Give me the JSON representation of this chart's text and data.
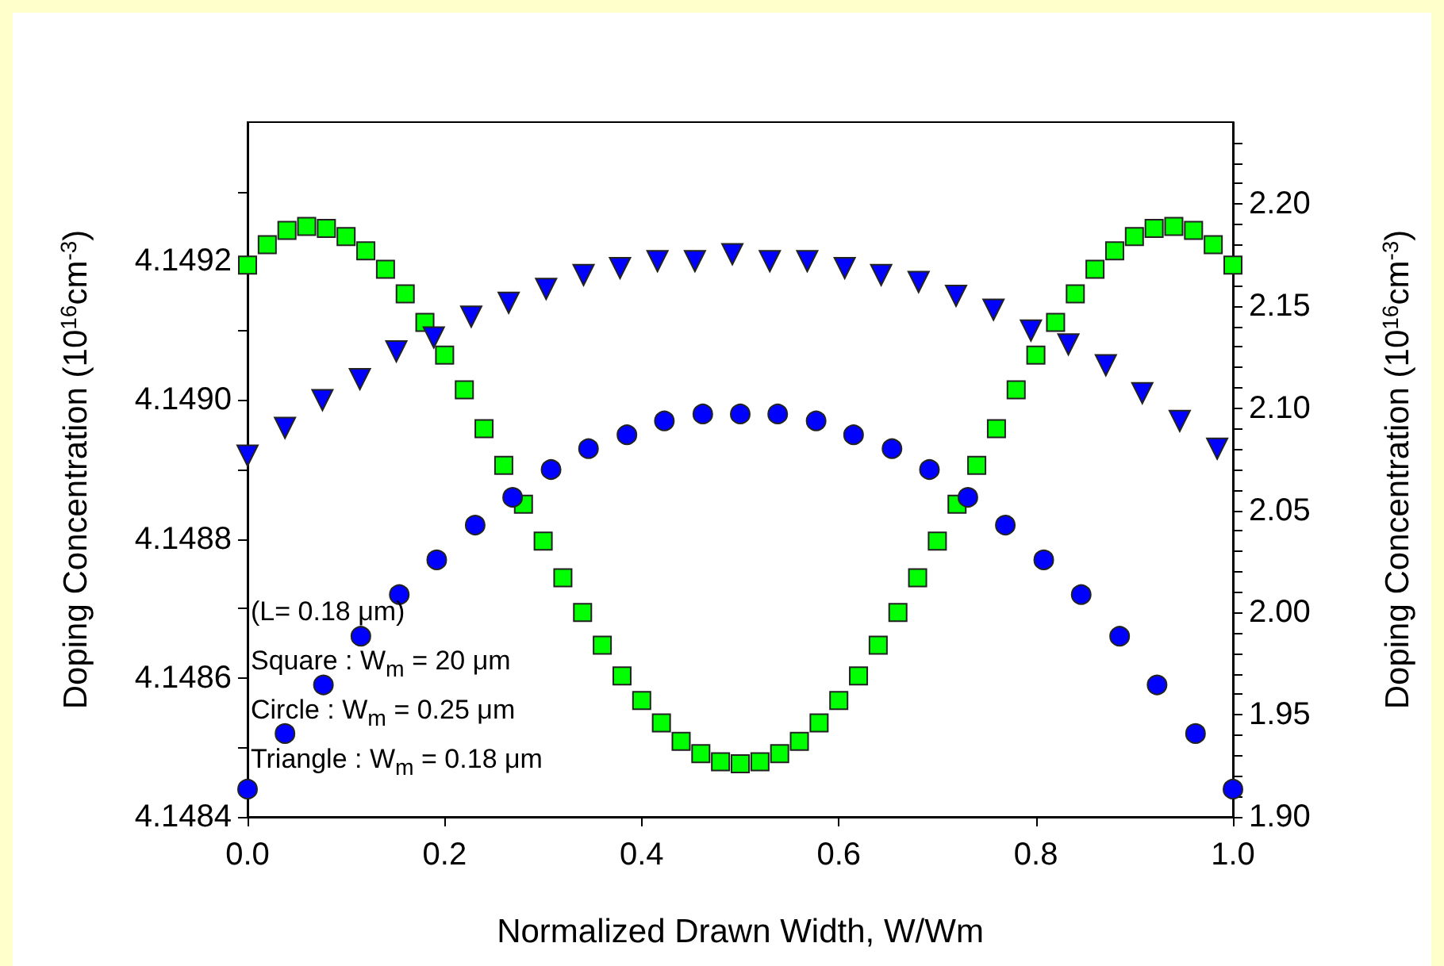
{
  "chart_data": {
    "type": "scatter",
    "xlabel": "Normalized Drawn Width, W/Wm",
    "ylabel": "Doping Concentration (10$^{16}$cm$^{-3}$)",
    "y2label": "Doping Concentration (10$^{16}$cm$^{-3}$)",
    "xlim": [
      0,
      1
    ],
    "xticks": [
      {
        "value": 0,
        "label": "0.0"
      },
      0.2,
      0.4,
      0.6,
      0.8,
      {
        "value": 1,
        "label": "1.0"
      }
    ],
    "ylim": [
      4.1484,
      4.1494
    ],
    "yticks": [
      4.1484,
      {
        "value": 4.1485,
        "label": null
      },
      4.1486,
      {
        "value": 4.1487,
        "label": null
      },
      4.1488,
      {
        "value": 4.1489,
        "label": null
      },
      {
        "value": 4.149,
        "label": "4.1490"
      },
      {
        "value": 4.1491,
        "label": null
      },
      4.1492,
      {
        "value": 4.1493,
        "label": null
      }
    ],
    "y2lim": [
      1.9,
      2.24
    ],
    "y2ticks": [
      {
        "value": 1.9,
        "label": "1.90"
      },
      {
        "value": 1.91,
        "label": null
      },
      {
        "value": 1.92,
        "label": null
      },
      {
        "value": 1.93,
        "label": null
      },
      {
        "value": 1.94,
        "label": null
      },
      {
        "value": 1.95,
        "label": "1.95"
      },
      {
        "value": 1.96,
        "label": null
      },
      {
        "value": 1.97,
        "label": null
      },
      {
        "value": 1.98,
        "label": null
      },
      {
        "value": 1.99,
        "label": null
      },
      {
        "value": 2.0,
        "label": "2.00"
      },
      {
        "value": 2.01,
        "label": null
      },
      {
        "value": 2.02,
        "label": null
      },
      {
        "value": 2.03,
        "label": null
      },
      {
        "value": 2.04,
        "label": null
      },
      {
        "value": 2.05,
        "label": "2.05"
      },
      {
        "value": 2.06,
        "label": null
      },
      {
        "value": 2.07,
        "label": null
      },
      {
        "value": 2.08,
        "label": null
      },
      {
        "value": 2.09,
        "label": null
      },
      {
        "value": 2.1,
        "label": "2.10"
      },
      {
        "value": 2.11,
        "label": null
      },
      {
        "value": 2.12,
        "label": null
      },
      {
        "value": 2.13,
        "label": null
      },
      {
        "value": 2.14,
        "label": null
      },
      {
        "value": 2.15,
        "label": "2.15"
      },
      {
        "value": 2.16,
        "label": null
      },
      {
        "value": 2.17,
        "label": null
      },
      {
        "value": 2.18,
        "label": null
      },
      {
        "value": 2.19,
        "label": null
      },
      {
        "value": 2.2,
        "label": "2.20"
      },
      {
        "value": 2.21,
        "label": null
      },
      {
        "value": 2.22,
        "label": null
      },
      {
        "value": 2.23,
        "label": null
      }
    ],
    "annotations": [
      "(L= 0.18 μm)",
      "Square : W$_{m}$ = 20 μm",
      "Circle : W$_{m}$ = 0.25 μm",
      "Triangle : W$_{m}$ = 0.18 μm"
    ],
    "series": [
      {
        "color": "#00ff00",
        "marker": "square",
        "axis": "y2",
        "x": [
          0,
          0.02,
          0.04,
          0.06,
          0.08,
          0.1,
          0.12,
          0.14,
          0.16,
          0.18,
          0.2,
          0.22,
          0.24,
          0.26,
          0.28,
          0.3,
          0.32,
          0.34,
          0.36,
          0.38,
          0.4,
          0.42,
          0.44,
          0.46,
          0.48,
          0.5,
          0.52,
          0.54,
          0.56,
          0.58,
          0.6,
          0.62,
          0.64,
          0.66,
          0.68,
          0.7,
          0.72,
          0.74,
          0.76,
          0.78,
          0.8,
          0.82,
          0.84,
          0.86,
          0.88,
          0.9,
          0.92,
          0.94,
          0.96,
          0.98,
          1
        ],
        "values": [
          2.17,
          2.18,
          2.187,
          2.189,
          2.188,
          2.184,
          2.177,
          2.168,
          2.156,
          2.142,
          2.126,
          2.109,
          2.09,
          2.072,
          2.053,
          2.035,
          2.017,
          2.0,
          1.984,
          1.969,
          1.957,
          1.946,
          1.937,
          1.931,
          1.927,
          1.926,
          1.927,
          1.931,
          1.937,
          1.946,
          1.957,
          1.969,
          1.984,
          2.0,
          2.017,
          2.035,
          2.053,
          2.072,
          2.09,
          2.109,
          2.126,
          2.142,
          2.156,
          2.168,
          2.177,
          2.184,
          2.188,
          2.189,
          2.187,
          2.18,
          2.17
        ]
      },
      {
        "color": "#0000ff",
        "marker": "circle",
        "x": [
          0,
          0.038,
          0.077,
          0.115,
          0.154,
          0.192,
          0.231,
          0.269,
          0.308,
          0.346,
          0.385,
          0.423,
          0.462,
          0.5,
          0.538,
          0.577,
          0.615,
          0.654,
          0.692,
          0.731,
          0.769,
          0.808,
          0.846,
          0.885,
          0.923,
          0.962,
          1
        ],
        "values": [
          4.14844,
          4.14852,
          4.14859,
          4.14866,
          4.14872,
          4.14877,
          4.14882,
          4.14886,
          4.1489,
          4.14893,
          4.14895,
          4.14897,
          4.14898,
          4.14898,
          4.14898,
          4.14897,
          4.14895,
          4.14893,
          4.1489,
          4.14886,
          4.14882,
          4.14877,
          4.14872,
          4.14866,
          4.14859,
          4.14852,
          4.14844
        ]
      },
      {
        "color": "#0000ff",
        "marker": "triangle",
        "x": [
          0,
          0.038,
          0.076,
          0.114,
          0.151,
          0.189,
          0.227,
          0.265,
          0.303,
          0.341,
          0.378,
          0.416,
          0.454,
          0.492,
          0.53,
          0.568,
          0.606,
          0.643,
          0.681,
          0.719,
          0.757,
          0.795,
          0.833,
          0.871,
          0.908,
          0.946,
          0.984
        ],
        "values": [
          4.14892,
          4.14896,
          4.149,
          4.14903,
          4.14907,
          4.14909,
          4.14912,
          4.14914,
          4.14916,
          4.14918,
          4.14919,
          4.1492,
          4.1492,
          4.14921,
          4.1492,
          4.1492,
          4.14919,
          4.14918,
          4.14917,
          4.14915,
          4.14913,
          4.1491,
          4.14908,
          4.14905,
          4.14901,
          4.14897,
          4.14893
        ]
      }
    ]
  }
}
